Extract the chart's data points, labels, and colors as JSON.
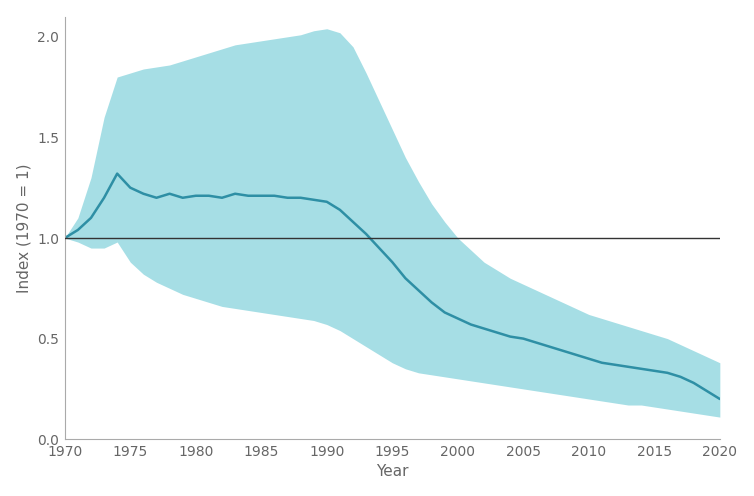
{
  "years": [
    1970,
    1971,
    1972,
    1973,
    1974,
    1975,
    1976,
    1977,
    1978,
    1979,
    1980,
    1981,
    1982,
    1983,
    1984,
    1985,
    1986,
    1987,
    1988,
    1989,
    1990,
    1991,
    1992,
    1993,
    1994,
    1995,
    1996,
    1997,
    1998,
    1999,
    2000,
    2001,
    2002,
    2003,
    2004,
    2005,
    2006,
    2007,
    2008,
    2009,
    2010,
    2011,
    2012,
    2013,
    2014,
    2015,
    2016,
    2017,
    2018,
    2019,
    2020
  ],
  "median": [
    1.0,
    1.04,
    1.1,
    1.2,
    1.32,
    1.25,
    1.22,
    1.2,
    1.22,
    1.2,
    1.21,
    1.21,
    1.2,
    1.22,
    1.21,
    1.21,
    1.21,
    1.2,
    1.2,
    1.19,
    1.18,
    1.14,
    1.08,
    1.02,
    0.95,
    0.88,
    0.8,
    0.74,
    0.68,
    0.63,
    0.6,
    0.57,
    0.55,
    0.53,
    0.51,
    0.5,
    0.48,
    0.46,
    0.44,
    0.42,
    0.4,
    0.38,
    0.37,
    0.36,
    0.35,
    0.34,
    0.33,
    0.31,
    0.28,
    0.24,
    0.2
  ],
  "upper": [
    1.0,
    1.1,
    1.3,
    1.6,
    1.8,
    1.82,
    1.84,
    1.85,
    1.86,
    1.88,
    1.9,
    1.92,
    1.94,
    1.96,
    1.97,
    1.98,
    1.99,
    2.0,
    2.01,
    2.03,
    2.04,
    2.02,
    1.95,
    1.82,
    1.68,
    1.54,
    1.4,
    1.28,
    1.17,
    1.08,
    1.0,
    0.94,
    0.88,
    0.84,
    0.8,
    0.77,
    0.74,
    0.71,
    0.68,
    0.65,
    0.62,
    0.6,
    0.58,
    0.56,
    0.54,
    0.52,
    0.5,
    0.47,
    0.44,
    0.41,
    0.38
  ],
  "lower": [
    1.0,
    0.98,
    0.95,
    0.95,
    0.98,
    0.88,
    0.82,
    0.78,
    0.75,
    0.72,
    0.7,
    0.68,
    0.66,
    0.65,
    0.64,
    0.63,
    0.62,
    0.61,
    0.6,
    0.59,
    0.57,
    0.54,
    0.5,
    0.46,
    0.42,
    0.38,
    0.35,
    0.33,
    0.32,
    0.31,
    0.3,
    0.29,
    0.28,
    0.27,
    0.26,
    0.25,
    0.24,
    0.23,
    0.22,
    0.21,
    0.2,
    0.19,
    0.18,
    0.17,
    0.17,
    0.16,
    0.15,
    0.14,
    0.13,
    0.12,
    0.11
  ],
  "line_color": "#2e8fa5",
  "band_color": "#76cdd8",
  "band_alpha": 0.65,
  "ref_line_y": 1.0,
  "ref_line_color": "#333333",
  "xlabel": "Year",
  "ylabel": "Index (1970 = 1)",
  "xlim": [
    1970,
    2020
  ],
  "ylim": [
    0.0,
    2.1
  ],
  "yticks": [
    0.0,
    0.5,
    1.0,
    1.5,
    2.0
  ],
  "xticks": [
    1970,
    1975,
    1980,
    1985,
    1990,
    1995,
    2000,
    2005,
    2010,
    2015,
    2020
  ],
  "background_color": "#ffffff",
  "spine_color": "#aaaaaa",
  "tick_color": "#666666",
  "label_fontsize": 11,
  "tick_fontsize": 10,
  "line_width": 1.8
}
